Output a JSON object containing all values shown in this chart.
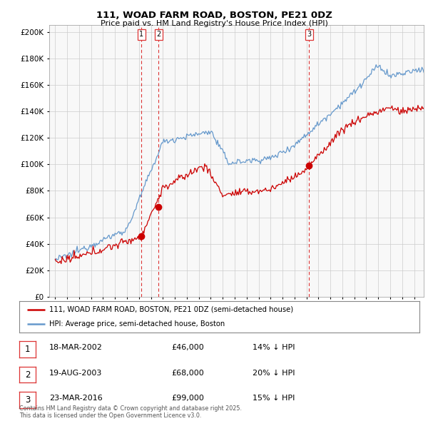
{
  "title": "111, WOAD FARM ROAD, BOSTON, PE21 0DZ",
  "subtitle": "Price paid vs. HM Land Registry's House Price Index (HPI)",
  "background_color": "#ffffff",
  "plot_bg_color": "#f8f8f8",
  "grid_color": "#cccccc",
  "legend_entry1": "111, WOAD FARM ROAD, BOSTON, PE21 0DZ (semi-detached house)",
  "legend_entry2": "HPI: Average price, semi-detached house, Boston",
  "line1_color": "#cc0000",
  "line2_color": "#6699cc",
  "vline_color": "#dd3333",
  "transactions": [
    {
      "num": 1,
      "date_str": "18-MAR-2002",
      "date_x": 2002.21,
      "price": 46000,
      "pct": "14%"
    },
    {
      "num": 2,
      "date_str": "19-AUG-2003",
      "date_x": 2003.63,
      "price": 68000,
      "pct": "20%"
    },
    {
      "num": 3,
      "date_str": "23-MAR-2016",
      "date_x": 2016.23,
      "price": 99000,
      "pct": "15%"
    }
  ],
  "footer": "Contains HM Land Registry data © Crown copyright and database right 2025.\nThis data is licensed under the Open Government Licence v3.0.",
  "ylim": [
    0,
    205000
  ],
  "xlim": [
    1994.5,
    2025.8
  ],
  "yticks": [
    0,
    20000,
    40000,
    60000,
    80000,
    100000,
    120000,
    140000,
    160000,
    180000,
    200000
  ],
  "xticks": [
    1995,
    1996,
    1997,
    1998,
    1999,
    2000,
    2001,
    2002,
    2003,
    2004,
    2005,
    2006,
    2007,
    2008,
    2009,
    2010,
    2011,
    2012,
    2013,
    2014,
    2015,
    2016,
    2017,
    2018,
    2019,
    2020,
    2021,
    2022,
    2023,
    2024,
    2025
  ]
}
